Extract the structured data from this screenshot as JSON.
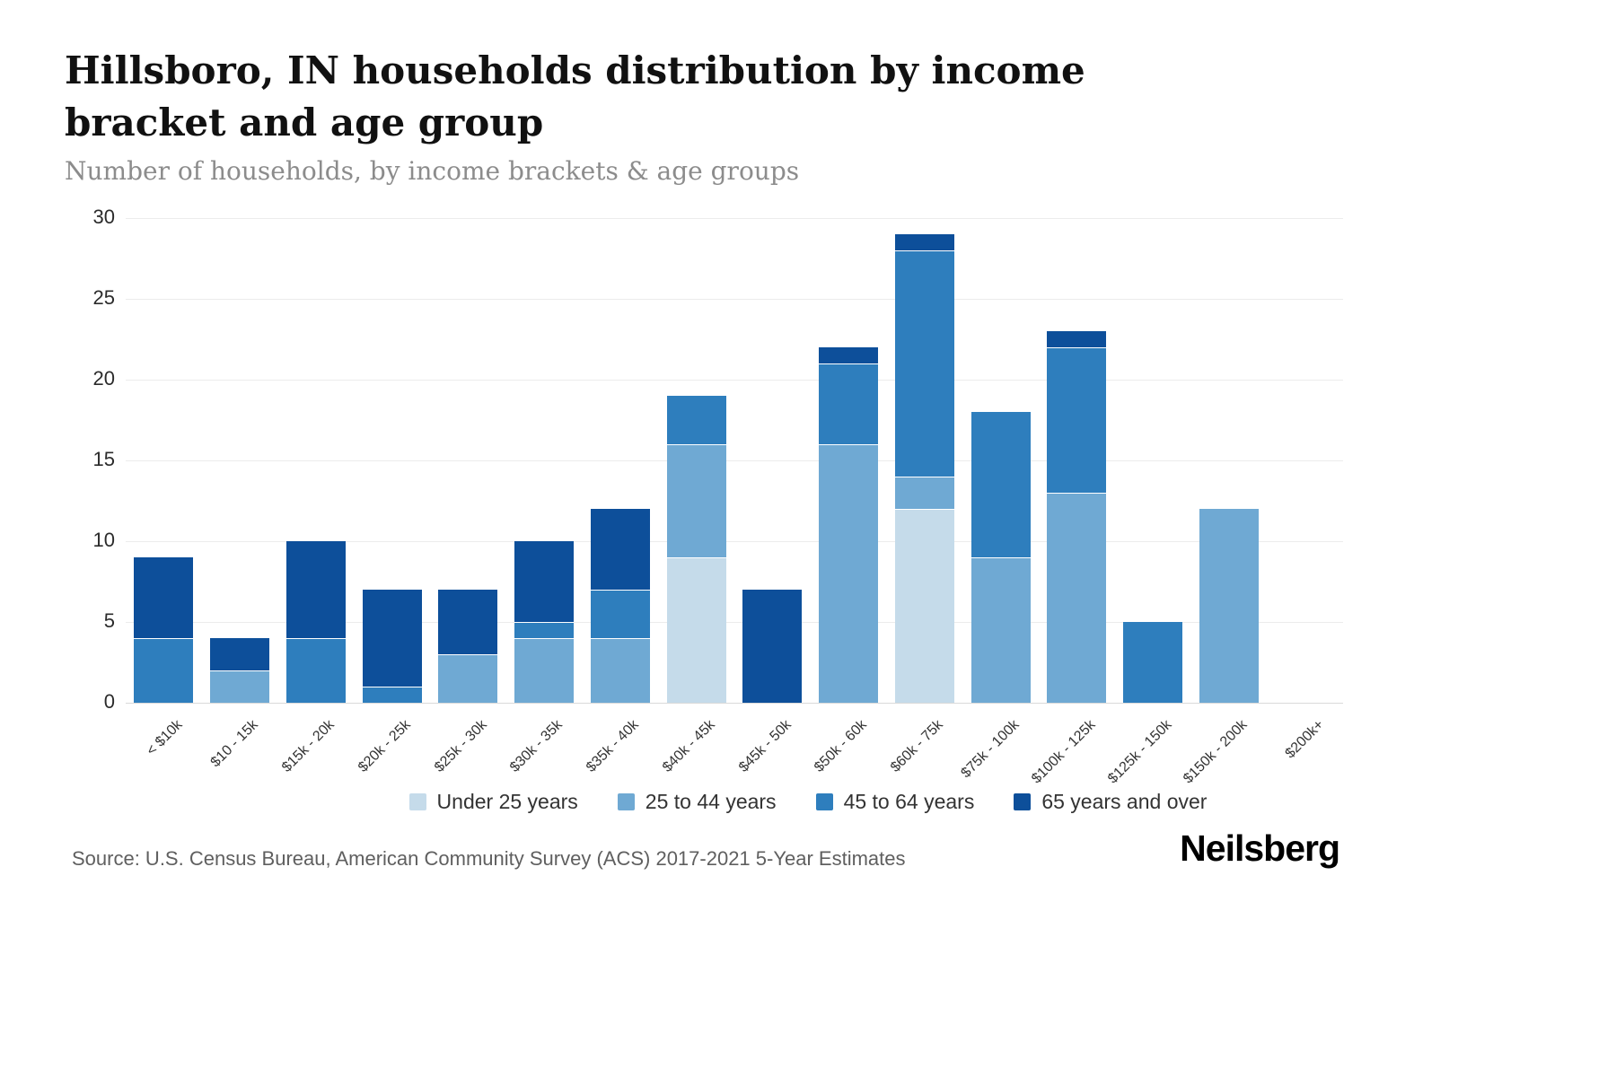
{
  "header": {
    "title": "Hillsboro, IN households distribution by income bracket and age group",
    "subtitle": "Number of households, by income brackets & age groups"
  },
  "footer": {
    "source": "Source: U.S. Census Bureau, American Community Survey (ACS) 2017-2021 5-Year Estimates",
    "brand": "Neilsberg"
  },
  "chart_data": {
    "type": "bar",
    "stacked": true,
    "title": "Hillsboro, IN households distribution by income bracket and age group",
    "subtitle": "Number of households, by income brackets & age groups",
    "xlabel": "",
    "ylabel": "Number of households",
    "categories": [
      "< $10k",
      "$10 - 15k",
      "$15k - 20k",
      "$20k - 25k",
      "$25k - 30k",
      "$30k - 35k",
      "$35k - 40k",
      "$40k - 45k",
      "$45k - 50k",
      "$50k - 60k",
      "$60k - 75k",
      "$75k - 100k",
      "$100k - 125k",
      "$125k - 150k",
      "$150k - 200k",
      "$200k+"
    ],
    "series": [
      {
        "name": "Under 25 years",
        "color": "#c5dbea",
        "values": [
          0,
          0,
          0,
          0,
          0,
          0,
          0,
          9,
          0,
          0,
          12,
          0,
          0,
          0,
          0,
          0
        ]
      },
      {
        "name": "25 to 44 years",
        "color": "#6fa9d3",
        "values": [
          0,
          2,
          0,
          0,
          3,
          4,
          4,
          7,
          0,
          16,
          2,
          9,
          13,
          0,
          12,
          0
        ]
      },
      {
        "name": "45 to 64 years",
        "color": "#2e7ebd",
        "values": [
          4,
          0,
          4,
          1,
          0,
          1,
          3,
          3,
          0,
          5,
          14,
          9,
          9,
          5,
          0,
          0
        ]
      },
      {
        "name": "65 years and over",
        "color": "#0d4f9a",
        "values": [
          5,
          2,
          6,
          6,
          4,
          5,
          5,
          0,
          7,
          1,
          1,
          0,
          1,
          0,
          0,
          0
        ]
      }
    ],
    "totals": [
      9,
      4,
      10,
      7,
      7,
      10,
      12,
      19,
      7,
      22,
      29,
      18,
      23,
      5,
      12,
      0
    ],
    "ylim": [
      0,
      30
    ],
    "yticks": [
      0,
      5,
      10,
      15,
      20,
      25,
      30
    ],
    "grid": true,
    "legend_position": "bottom"
  }
}
